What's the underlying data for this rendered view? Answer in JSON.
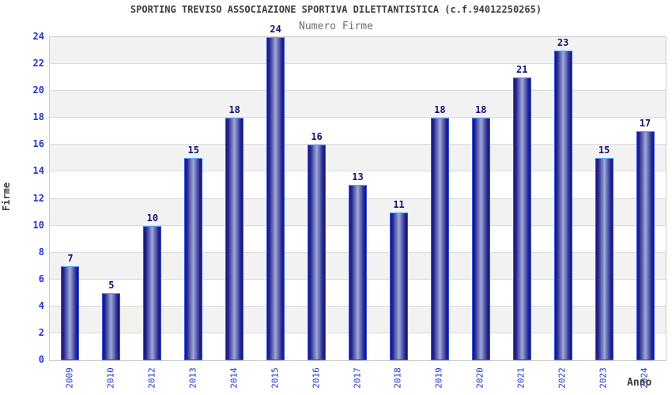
{
  "chart_data": {
    "type": "bar",
    "title": "SPORTING TREVISO ASSOCIAZIONE SPORTIVA DILETTANTISTICA (c.f.94012250265)",
    "subtitle": "Numero Firme",
    "xlabel": "Anno",
    "ylabel": "Firme",
    "categories": [
      "2009",
      "2010",
      "2012",
      "2013",
      "2014",
      "2015",
      "2016",
      "2017",
      "2018",
      "2019",
      "2020",
      "2021",
      "2022",
      "2023",
      "2024"
    ],
    "values": [
      7,
      5,
      10,
      15,
      18,
      24,
      16,
      13,
      11,
      18,
      18,
      21,
      23,
      15,
      17
    ],
    "ylim": [
      0,
      24
    ],
    "ytick_step": 2,
    "legend": "none",
    "grid": "horizontal-gridlines-with-alternating-bands",
    "colors": {
      "bar_outline": "#2f55e6",
      "bar_top_highlight": "#55a0ff",
      "bar_edge": "#181878",
      "bar_center": "#9fa9d8",
      "tick_label": "#2233cc",
      "value_label": "#12126e",
      "title": "#3c3c3c",
      "subtitle": "#6e6e6e",
      "band_gray": "#f2f2f2",
      "band_white": "#ffffff",
      "grid_line": "#d9d9d9",
      "plot_border": "#cccccc"
    }
  }
}
